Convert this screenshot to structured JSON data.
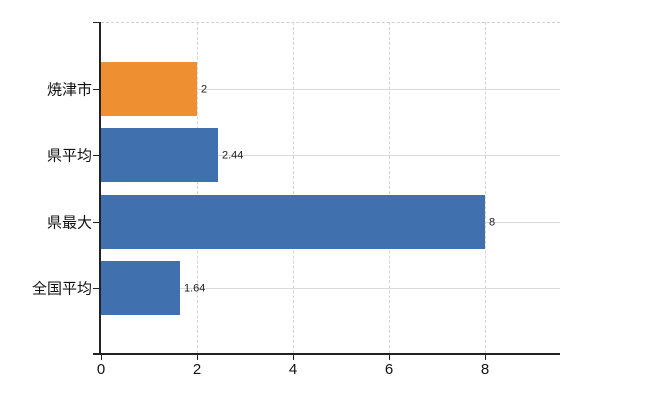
{
  "chart_data": {
    "type": "bar",
    "orientation": "horizontal",
    "title": "",
    "xlabel": "",
    "ylabel": "",
    "categories": [
      "焼津市",
      "県平均",
      "県最大",
      "全国平均"
    ],
    "values": [
      2,
      2.44,
      8,
      1.64
    ],
    "value_labels": [
      "2",
      "2.44",
      "8",
      "1.64"
    ],
    "x_ticks": [
      "0",
      "2",
      "4",
      "6",
      "8"
    ],
    "xlim": [
      0,
      9.56
    ],
    "grid": true,
    "legend": false,
    "highlight_index": 0,
    "colors": {
      "bar": "#4170af",
      "bar_highlight": "#ee8f31",
      "gridline": "#d9d9d9",
      "top_border": "#cfcfcf",
      "axis": "#222222",
      "value_label": "#222222",
      "category_label": "#111111"
    }
  }
}
